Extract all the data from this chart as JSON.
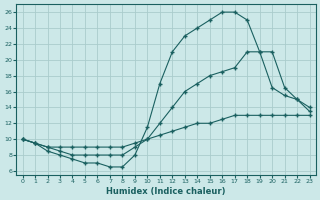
{
  "xlabel": "Humidex (Indice chaleur)",
  "bg_color": "#cce8e8",
  "grid_color": "#aacccc",
  "line_color": "#1a6060",
  "xlim": [
    -0.5,
    23.5
  ],
  "ylim": [
    5.5,
    27
  ],
  "xticks": [
    0,
    1,
    2,
    3,
    4,
    5,
    6,
    7,
    8,
    9,
    10,
    11,
    12,
    13,
    14,
    15,
    16,
    17,
    18,
    19,
    20,
    21,
    22,
    23
  ],
  "yticks": [
    6,
    8,
    10,
    12,
    14,
    16,
    18,
    20,
    22,
    24,
    26
  ],
  "curve1_x": [
    0,
    1,
    2,
    3,
    4,
    5,
    6,
    7,
    8,
    9,
    10,
    11,
    12,
    13,
    14,
    15,
    16,
    17,
    18,
    19,
    20,
    21,
    22,
    23
  ],
  "curve1_y": [
    10,
    9.5,
    9,
    9,
    9,
    9,
    9,
    9,
    9,
    9.5,
    10,
    10.5,
    11,
    11.5,
    12,
    12,
    12.5,
    13,
    13,
    13,
    13,
    13,
    13,
    13
  ],
  "curve2_x": [
    0,
    1,
    2,
    3,
    4,
    5,
    6,
    7,
    8,
    9,
    10,
    11,
    12,
    13,
    14,
    15,
    16,
    17,
    18,
    19,
    20,
    21,
    22,
    23
  ],
  "curve2_y": [
    10,
    9.5,
    8.5,
    8,
    7.5,
    7,
    7,
    6.5,
    6.5,
    8,
    11.5,
    17,
    21,
    23,
    24,
    25,
    26,
    26,
    25,
    21,
    16.5,
    15.5,
    15,
    14
  ],
  "curve3_x": [
    0,
    1,
    2,
    3,
    4,
    5,
    6,
    7,
    8,
    9,
    10,
    11,
    12,
    13,
    14,
    15,
    16,
    17,
    18,
    19,
    20,
    21,
    22,
    23
  ],
  "curve3_y": [
    10,
    9.5,
    9,
    8.5,
    8,
    8,
    8,
    8,
    8,
    9,
    10,
    12,
    14,
    16,
    17,
    18,
    18.5,
    19,
    21,
    21,
    21,
    16.5,
    15,
    13.5
  ]
}
